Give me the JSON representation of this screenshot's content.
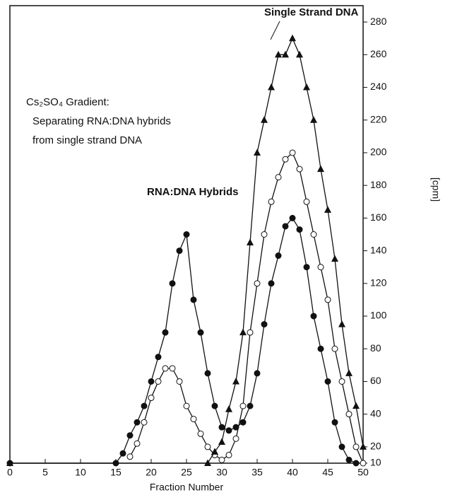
{
  "chart_data": {
    "type": "line",
    "annotations": [
      "Single Strand DNA",
      "RNA:DNA Hybrids",
      "Cs₂SO₄ Gradient:",
      "Separating RNA:DNA hybrids",
      "from single strand DNA"
    ],
    "xlabel": "Fraction Number",
    "ylabel": "[cpm]",
    "xlim": [
      0,
      50
    ],
    "xticks": [
      0,
      5,
      10,
      15,
      20,
      25,
      30,
      35,
      40,
      45,
      50
    ],
    "ylim": [
      10,
      290
    ],
    "yticks": [
      10,
      20,
      40,
      60,
      80,
      100,
      120,
      140,
      160,
      180,
      200,
      220,
      240,
      260,
      280
    ],
    "series": [
      {
        "color": "#111111",
        "marker": "filled",
        "x": [
          0,
          15,
          16,
          17,
          18,
          19,
          20,
          21,
          22,
          23,
          24,
          25,
          26,
          27,
          28,
          29,
          30,
          31,
          32,
          33,
          34,
          35,
          36,
          37,
          38,
          39,
          40,
          41,
          42,
          43,
          44,
          45,
          46,
          47,
          48,
          49
        ],
        "values": [
          10,
          10,
          16,
          27,
          35,
          45,
          60,
          75,
          90,
          120,
          140,
          150,
          110,
          90,
          65,
          45,
          32,
          30,
          32,
          35,
          45,
          65,
          95,
          120,
          137,
          155,
          160,
          153,
          130,
          100,
          80,
          60,
          35,
          20,
          12,
          10
        ]
      },
      {
        "color": "#111111",
        "marker": "open",
        "x": [
          17,
          18,
          19,
          20,
          21,
          22,
          23,
          24,
          25,
          26,
          27,
          28,
          29,
          30,
          31,
          32,
          33,
          34,
          35,
          36,
          37,
          38,
          39,
          40,
          41,
          42,
          43,
          44,
          45,
          46,
          47,
          48,
          49,
          50
        ],
        "values": [
          14,
          22,
          35,
          50,
          60,
          68,
          68,
          60,
          45,
          37,
          28,
          20,
          15,
          12,
          15,
          25,
          45,
          90,
          120,
          150,
          170,
          185,
          196,
          200,
          190,
          170,
          150,
          130,
          110,
          80,
          60,
          40,
          20,
          10
        ]
      },
      {
        "color": "#111111",
        "marker": "triangle",
        "x": [
          0,
          28,
          29,
          30,
          31,
          32,
          33,
          34,
          35,
          36,
          37,
          38,
          39,
          40,
          41,
          42,
          43,
          44,
          45,
          46,
          47,
          48,
          49,
          50
        ],
        "values": [
          10,
          10,
          17,
          23,
          43,
          60,
          90,
          145,
          200,
          220,
          240,
          260,
          260,
          270,
          260,
          240,
          220,
          190,
          165,
          135,
          95,
          65,
          45,
          20
        ]
      }
    ]
  }
}
